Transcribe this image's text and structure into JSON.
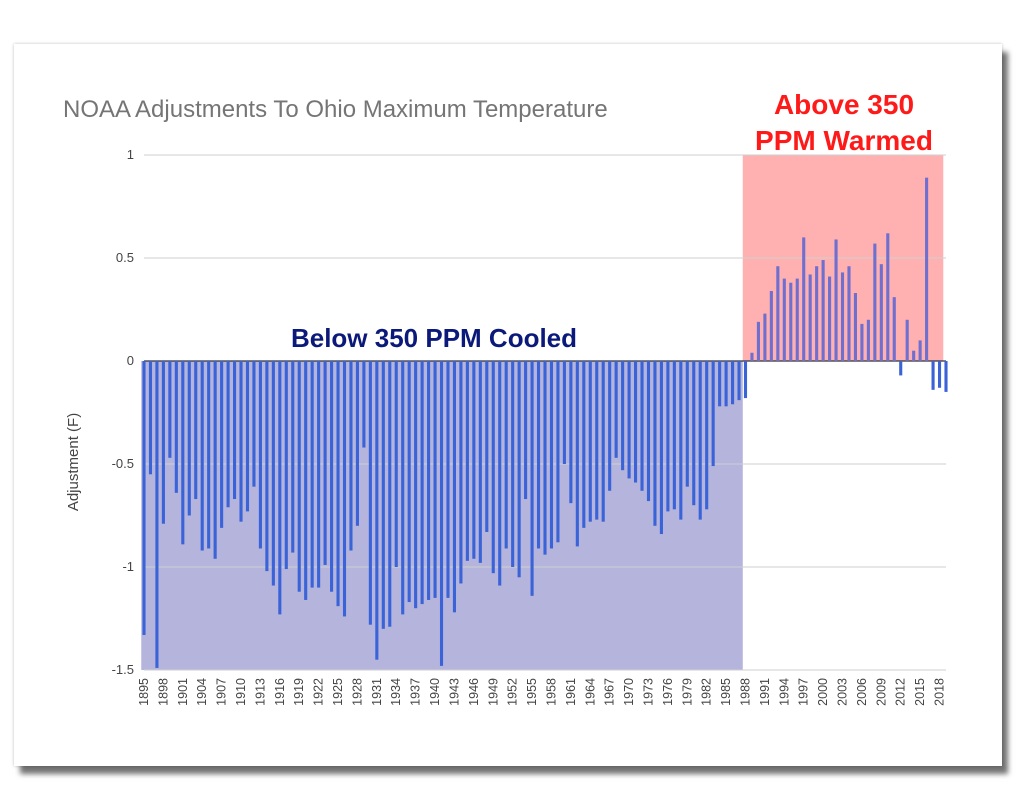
{
  "chart_data": {
    "type": "bar",
    "title": "NOAA Adjustments To Ohio Maximum Temperature",
    "xlabel": "",
    "ylabel": "Adjustment (F)",
    "ylim": [
      -1.5,
      1
    ],
    "yticks": [
      "1",
      "0.5",
      "0",
      "-0.5",
      "-1",
      "-1.5"
    ],
    "ytick_values": [
      1,
      0.5,
      0,
      -0.5,
      -1,
      -1.5
    ],
    "x_start_year": 1895,
    "x_end_year": 2019,
    "x_tick_labels": [
      "1895",
      "1898",
      "1901",
      "1904",
      "1907",
      "1910",
      "1913",
      "1916",
      "1919",
      "1922",
      "1925",
      "1928",
      "1931",
      "1934",
      "1937",
      "1940",
      "1943",
      "1946",
      "1949",
      "1952",
      "1955",
      "1958",
      "1961",
      "1964",
      "1967",
      "1970",
      "1973",
      "1976",
      "1979",
      "1982",
      "1985",
      "1988",
      "1991",
      "1994",
      "1997",
      "2000",
      "2003",
      "2006",
      "2009",
      "2012",
      "2015",
      "2018"
    ],
    "series": [
      {
        "name": "Adjustment (F)",
        "color": "#3a63d8",
        "values": [
          -1.33,
          -0.55,
          -1.49,
          -0.79,
          -0.47,
          -0.64,
          -0.89,
          -0.75,
          -0.67,
          -0.92,
          -0.91,
          -0.96,
          -0.81,
          -0.71,
          -0.67,
          -0.78,
          -0.73,
          -0.61,
          -0.91,
          -1.02,
          -1.09,
          -1.23,
          -1.01,
          -0.93,
          -1.12,
          -1.16,
          -1.1,
          -1.1,
          -0.99,
          -1.12,
          -1.19,
          -1.24,
          -0.92,
          -0.8,
          -0.42,
          -1.28,
          -1.45,
          -1.3,
          -1.29,
          -1.0,
          -1.23,
          -1.17,
          -1.2,
          -1.18,
          -1.16,
          -1.15,
          -1.48,
          -1.15,
          -1.22,
          -1.08,
          -0.97,
          -0.96,
          -0.98,
          -0.83,
          -1.03,
          -1.09,
          -0.91,
          -1.0,
          -1.05,
          -0.67,
          -1.14,
          -0.91,
          -0.94,
          -0.91,
          -0.88,
          -0.5,
          -0.69,
          -0.9,
          -0.81,
          -0.78,
          -0.77,
          -0.78,
          -0.63,
          -0.47,
          -0.53,
          -0.57,
          -0.59,
          -0.63,
          -0.68,
          -0.8,
          -0.84,
          -0.73,
          -0.72,
          -0.77,
          -0.61,
          -0.7,
          -0.77,
          -0.72,
          -0.51,
          -0.22,
          -0.22,
          -0.21,
          -0.19,
          -0.18,
          0.04,
          0.19,
          0.23,
          0.34,
          0.46,
          0.4,
          0.38,
          0.4,
          0.6,
          0.42,
          0.46,
          0.49,
          0.41,
          0.59,
          0.43,
          0.46,
          0.33,
          0.18,
          0.2,
          0.57,
          0.47,
          0.62,
          0.31,
          -0.07,
          0.2,
          0.05,
          0.1,
          0.89,
          -0.14,
          -0.13,
          -0.15
        ]
      }
    ],
    "regions": [
      {
        "name": "below-350",
        "from_year": 1895,
        "to_year": 1988,
        "color": "#b4b4dc",
        "label": "Below 350 PPM Cooled",
        "label_color": "#0b1a7a"
      },
      {
        "name": "above-350",
        "from_year": 1988,
        "to_year": 2019,
        "color": "#ffb0b0",
        "label_lines": [
          "Above 350",
          "PPM Warmed"
        ],
        "label_color": "#ff1a1a"
      }
    ],
    "gridlines": true,
    "legend": "none"
  }
}
